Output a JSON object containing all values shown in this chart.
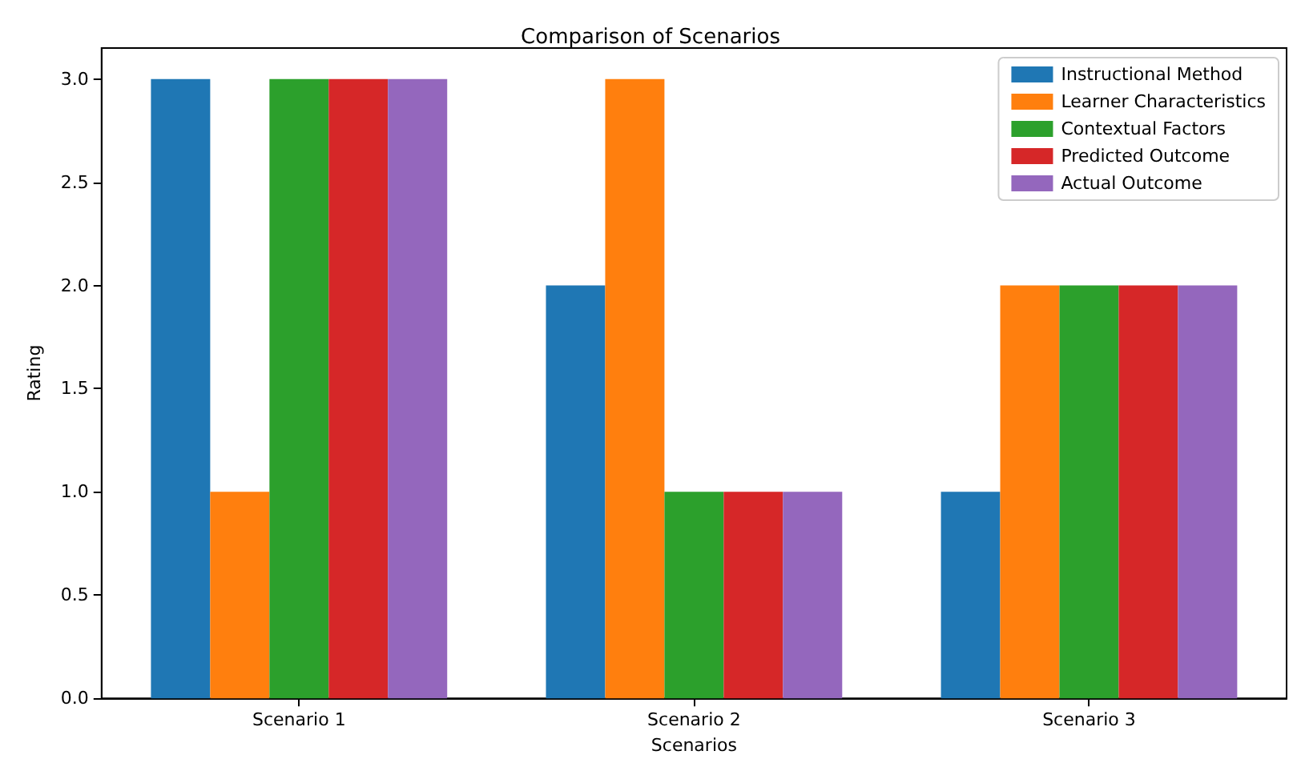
{
  "chart_data": {
    "type": "bar",
    "title": "Comparison of Scenarios",
    "xlabel": "Scenarios",
    "ylabel": "Rating",
    "categories": [
      "Scenario 1",
      "Scenario 2",
      "Scenario 3"
    ],
    "series": [
      {
        "name": "Instructional Method",
        "color": "#1f77b4",
        "values": [
          3,
          2,
          1
        ]
      },
      {
        "name": "Learner Characteristics",
        "color": "#ff7f0e",
        "values": [
          1,
          3,
          2
        ]
      },
      {
        "name": "Contextual Factors",
        "color": "#2ca02c",
        "values": [
          3,
          1,
          2
        ]
      },
      {
        "name": "Predicted Outcome",
        "color": "#d62728",
        "values": [
          3,
          1,
          2
        ]
      },
      {
        "name": "Actual Outcome",
        "color": "#9467bd",
        "values": [
          3,
          1,
          2
        ]
      }
    ],
    "ylim": [
      0,
      3.15
    ],
    "yticks": [
      {
        "value": 0,
        "label": "0.0"
      },
      {
        "value": 0.5,
        "label": "0.5"
      },
      {
        "value": 1,
        "label": "1.0"
      },
      {
        "value": 1.5,
        "label": "1.5"
      },
      {
        "value": 2,
        "label": "2.0"
      },
      {
        "value": 2.5,
        "label": "2.5"
      },
      {
        "value": 3,
        "label": "3.0"
      }
    ],
    "grid": false,
    "legend": "top right"
  }
}
